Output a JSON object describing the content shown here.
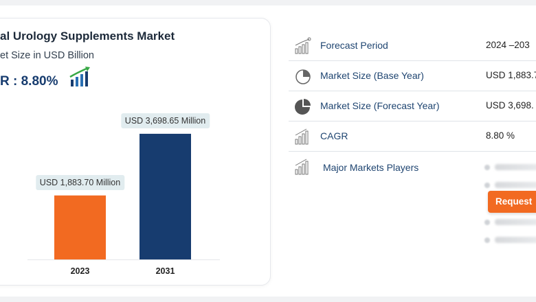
{
  "chart_title": "al Urology Supplements Market",
  "chart_subtitle": "et Size in USD Billion",
  "cagr_text": "R : 8.80%",
  "colors": {
    "bar_2023": "#f26a21",
    "bar_2031": "#173c6f",
    "accent_orange": "#f26a21",
    "label_blue": "#1e4470"
  },
  "chart_data": {
    "type": "bar",
    "title": "al Urology Supplements Market",
    "ylabel": "et Size in USD Billion",
    "categories": [
      "2023",
      "2031"
    ],
    "values": [
      1883.7,
      3698.65
    ],
    "data_labels": [
      "USD 1,883.70 Million",
      "USD 3,698.65 Million"
    ],
    "ylim": [
      0,
      4000
    ],
    "grid": false
  },
  "table": {
    "rows": [
      {
        "icon": "bar-chart-growth-icon",
        "label": "Forecast Period",
        "value": "2024 –203"
      },
      {
        "icon": "pie-chart-icon",
        "label": "Market Size (Base Year)",
        "value": "USD 1,883.7"
      },
      {
        "icon": "pie-chart-filled-icon",
        "label": "Market Size (Forecast Year)",
        "value": "USD 3,698."
      },
      {
        "icon": "bar-chart-icon",
        "label": "CAGR",
        "value": "8.80 %"
      },
      {
        "icon": "bar-chart-icon",
        "label": "Major Markets Players",
        "value": ""
      }
    ]
  },
  "request_button_label": "Request"
}
